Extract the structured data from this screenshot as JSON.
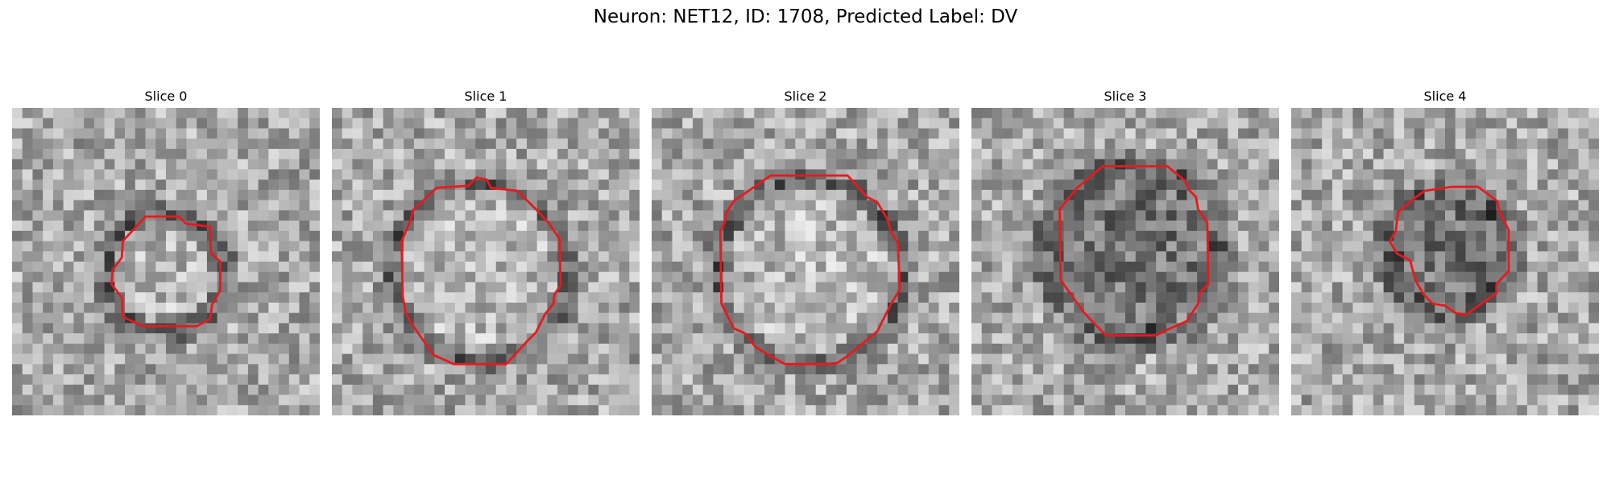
{
  "figure": {
    "title": "Neuron: NET12, ID: 1708, Predicted Label: DV"
  },
  "slices": [
    {
      "title": "Slice 0"
    },
    {
      "title": "Slice 1"
    },
    {
      "title": "Slice 2"
    },
    {
      "title": "Slice 3"
    },
    {
      "title": "Slice 4"
    }
  ],
  "colors": {
    "contour": "#e8191d",
    "colormap": "grayscale"
  }
}
